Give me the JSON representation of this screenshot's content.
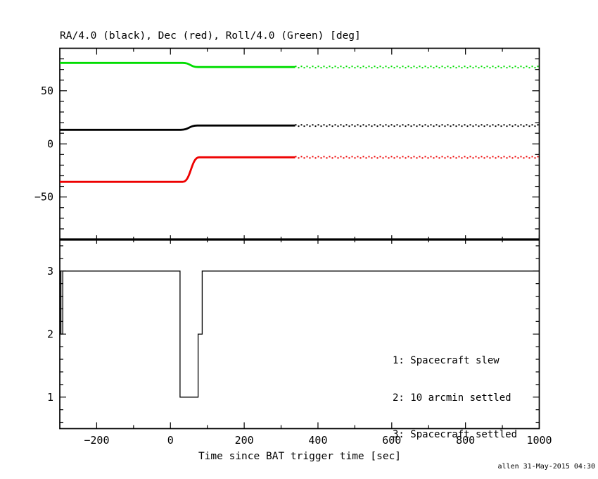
{
  "chart_data": {
    "type": "line",
    "title": "RA/4.0 (black), Dec (red), Roll/4.0 (Green) [deg]",
    "x_label": "Time since BAT trigger time [sec]",
    "credit": "allen 31-May-2015 04:30",
    "x_range": [
      -300,
      1000
    ],
    "x_major_ticks": [
      -200,
      0,
      200,
      400,
      600,
      800,
      1000
    ],
    "x_tick_labels": [
      "−200",
      "0",
      "200",
      "400",
      "600",
      "800",
      "1000"
    ],
    "x_minor_step": 100,
    "grid": false,
    "panels": [
      {
        "name": "attitude",
        "y_range": [
          -90,
          90
        ],
        "y_major_ticks": [
          50,
          0,
          -50
        ],
        "y_tick_labels": [
          "50",
          "0",
          "−50"
        ],
        "y_minor_step": 10,
        "series": [
          {
            "name": "RA/4.0",
            "color": "#000000",
            "pre_slew_value": 13.2,
            "post_slew_value": 17.3,
            "slew_start": 28,
            "slew_end": 73,
            "solid_until": 338,
            "end": 1000,
            "style": "solid-then-dotted"
          },
          {
            "name": "Dec",
            "color": "#ee0000",
            "pre_slew_value": -35.8,
            "post_slew_value": -12.6,
            "slew_start": 33,
            "slew_end": 78,
            "solid_until": 338,
            "end": 1000,
            "style": "solid-then-dotted"
          },
          {
            "name": "Roll/4.0",
            "color": "#00dd00",
            "pre_slew_value": 76.2,
            "post_slew_value": 72.3,
            "slew_start": 33,
            "slew_end": 75,
            "solid_until": 338,
            "end": 1000,
            "style": "solid-then-dotted"
          }
        ]
      },
      {
        "name": "status",
        "y_range": [
          0.5,
          3.5
        ],
        "y_major_ticks": [
          3,
          2,
          1
        ],
        "y_tick_labels": [
          "3",
          "2",
          "1"
        ],
        "y_minor_step": 0.2,
        "legend": [
          "1: Spacecraft slew",
          "2: 10 arcmin settled",
          "3: Spacecraft settled"
        ],
        "series": [
          {
            "name": "settling-status",
            "color": "#000000",
            "points": [
              [
                -300,
                3
              ],
              [
                -297,
                3
              ],
              [
                -297,
                2
              ],
              [
                -292,
                2
              ],
              [
                -292,
                3
              ],
              [
                26,
                3
              ],
              [
                26,
                1
              ],
              [
                75,
                1
              ],
              [
                75,
                2
              ],
              [
                86,
                2
              ],
              [
                86,
                3
              ],
              [
                1000,
                3
              ]
            ]
          }
        ]
      }
    ]
  }
}
